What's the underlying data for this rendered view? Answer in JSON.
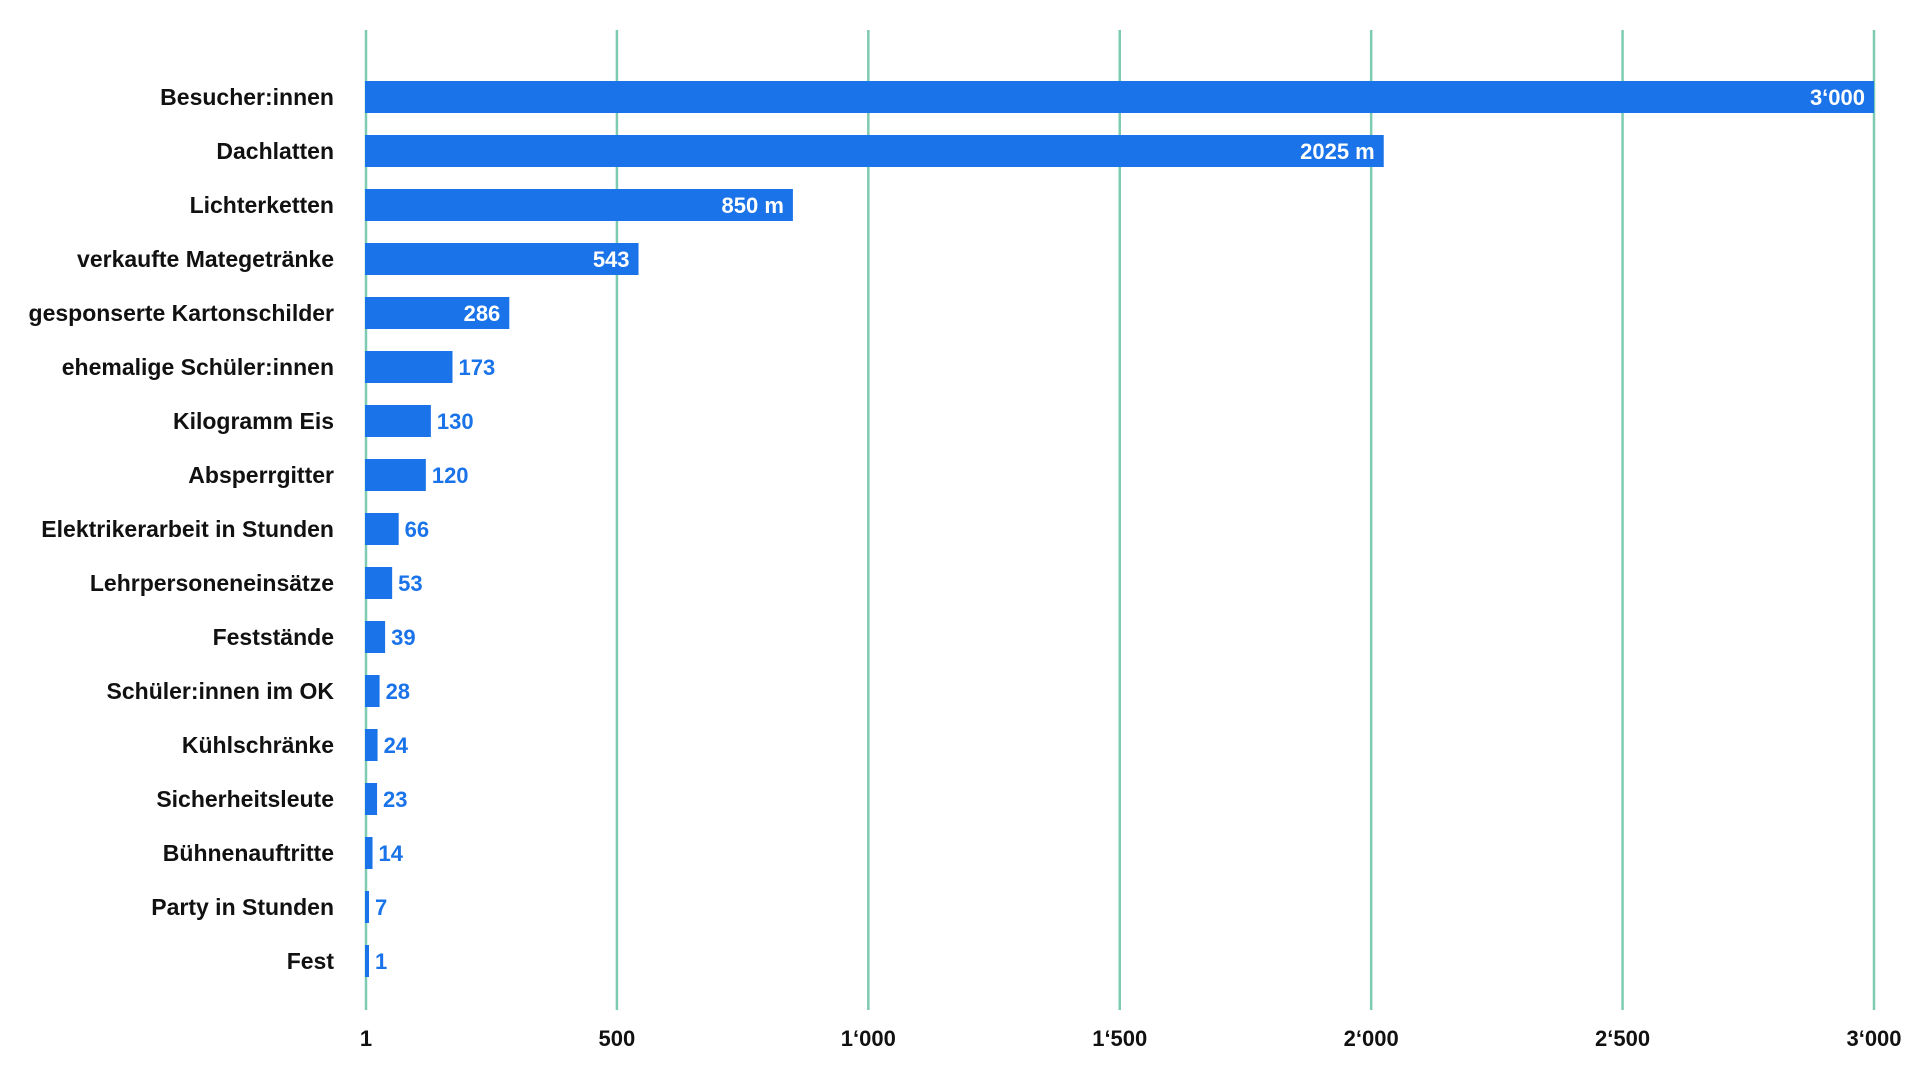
{
  "chart_data": {
    "type": "bar",
    "orientation": "horizontal",
    "title": "",
    "xlabel": "",
    "ylabel": "",
    "categories": [
      "Besucher:innen",
      "Dachlatten",
      "Lichterketten",
      "verkaufte Mategetränke",
      "gesponserte Kartonschilder",
      "ehemalige Schüler:innen",
      "Kilogramm Eis",
      "Absperrgitter",
      "Elektrikerarbeit in Stunden",
      "Lehrpersoneneinsätze",
      "Feststände",
      "Schüler:innen im OK",
      "Kühlschränke",
      "Sicherheitsleute",
      "Bühnenauftritte",
      "Party in Stunden",
      "Fest"
    ],
    "values": [
      3000,
      2025,
      850,
      543,
      286,
      173,
      130,
      120,
      66,
      53,
      39,
      28,
      24,
      23,
      14,
      7,
      1
    ],
    "value_labels": [
      "3‘000",
      "2025 m",
      "850 m",
      "543",
      "286",
      "173",
      "130",
      "120",
      "66",
      "53",
      "39",
      "28",
      "24",
      "23",
      "14",
      "7",
      "1"
    ],
    "xlim": [
      1,
      3000
    ],
    "x_ticks": [
      1,
      500,
      1000,
      1500,
      2000,
      2500,
      3000
    ],
    "x_tick_labels": [
      "1",
      "500",
      "1‘000",
      "1‘500",
      "2‘000",
      "2‘500",
      "3‘000"
    ],
    "grid": "vertical",
    "legend": "none",
    "colors": {
      "bar": "#1a73e8",
      "grid": "#7ecbb3",
      "label_inside": "#ffffff",
      "label_outside": "#1a73e8",
      "text": "#111111"
    }
  }
}
